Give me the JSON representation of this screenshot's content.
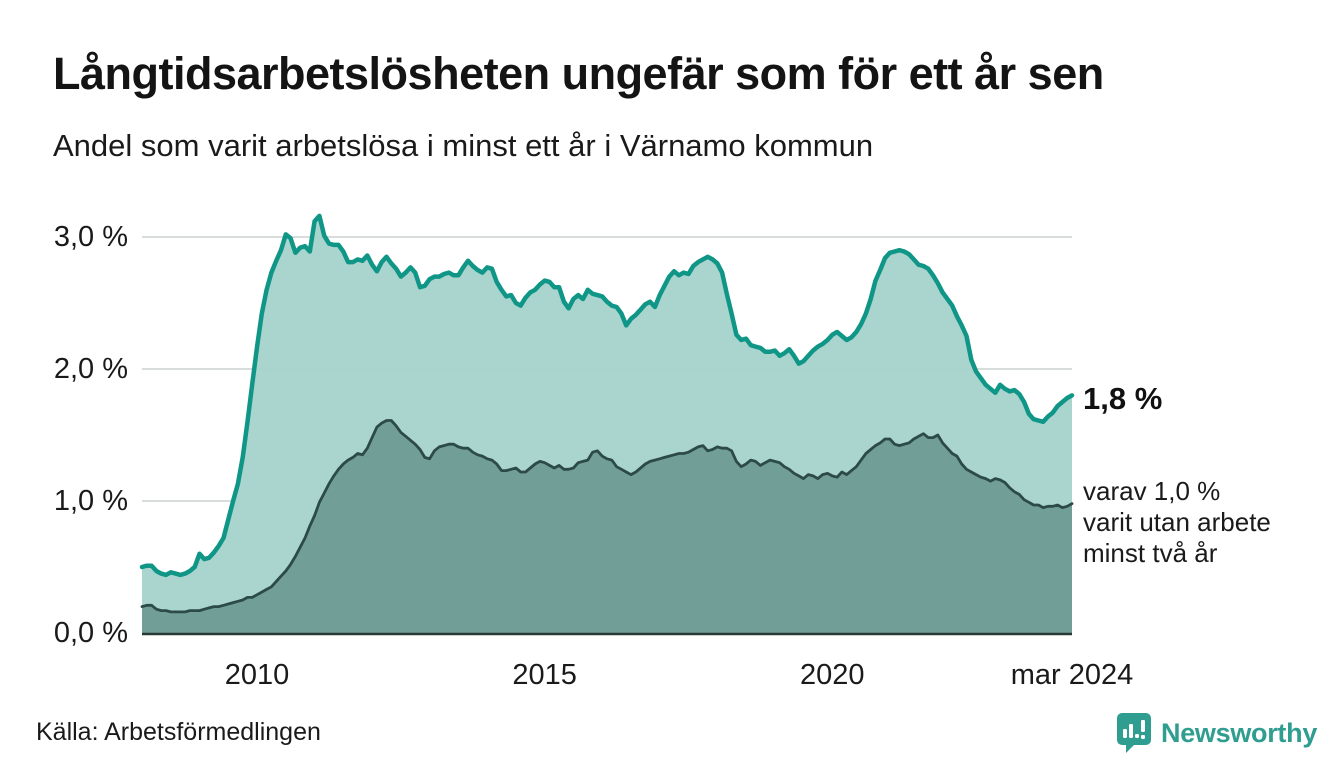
{
  "header": {
    "title": "Långtidsarbetslösheten ungefär som för ett år sen",
    "subtitle": "Andel som varit arbetslösa i minst ett år i Värnamo kommun"
  },
  "annotations": {
    "latest": "1,8 %",
    "secondary": "varav 1,0 %\nvarit utan arbete\nminst två år"
  },
  "footer": {
    "source": "Källa: Arbetsförmedlingen",
    "brand": "Newsworthy"
  },
  "colors": {
    "accent_teal": "#109687",
    "light_fill": "#a5d3cb",
    "dark_line": "#2d4b46",
    "dark_fill": "#6f9b95",
    "gridline": "#d8dcda",
    "axis_line": "#2a3835",
    "brand_teal": "#2f9d90"
  },
  "chart_data": {
    "type": "area",
    "title": "Andel som varit arbetslösa i minst ett år i Värnamo kommun",
    "frequency": "monthly",
    "x_start": "2008-01",
    "x_end": "2024-03",
    "unit": "%",
    "legend_position": "none",
    "grid": true,
    "x_axis": {
      "range_years": [
        2008.0,
        2024.1667
      ],
      "ticks": [
        {
          "label": "2010",
          "t": 2010.0
        },
        {
          "label": "2015",
          "t": 2015.0
        },
        {
          "label": "2020",
          "t": 2020.0
        },
        {
          "label": "mar 2024",
          "t": 2024.1667
        }
      ]
    },
    "y_axis": {
      "range": [
        0,
        3.35
      ],
      "gridlines": [
        1,
        2,
        3
      ],
      "ticks": [
        {
          "label": "0,0 %",
          "value": 0
        },
        {
          "label": "1,0 %",
          "value": 1
        },
        {
          "label": "2,0 %",
          "value": 2
        },
        {
          "label": "3,0 %",
          "value": 3
        }
      ]
    },
    "series": [
      {
        "name": "Andel arbetslösa minst ett år",
        "latest_value": 1.8,
        "line_color": "#109687",
        "fill_color": "#a5d3cb",
        "values": [
          0.5,
          0.51,
          0.51,
          0.47,
          0.45,
          0.44,
          0.46,
          0.45,
          0.44,
          0.45,
          0.47,
          0.5,
          0.6,
          0.56,
          0.57,
          0.61,
          0.66,
          0.72,
          0.86,
          1.0,
          1.13,
          1.33,
          1.6,
          1.89,
          2.17,
          2.42,
          2.6,
          2.73,
          2.82,
          2.9,
          3.02,
          2.99,
          2.88,
          2.92,
          2.93,
          2.89,
          3.12,
          3.16,
          3.01,
          2.95,
          2.94,
          2.94,
          2.89,
          2.81,
          2.81,
          2.83,
          2.82,
          2.86,
          2.79,
          2.74,
          2.81,
          2.85,
          2.8,
          2.76,
          2.7,
          2.73,
          2.77,
          2.73,
          2.62,
          2.63,
          2.68,
          2.7,
          2.7,
          2.72,
          2.73,
          2.71,
          2.71,
          2.77,
          2.82,
          2.78,
          2.75,
          2.73,
          2.77,
          2.76,
          2.66,
          2.6,
          2.55,
          2.56,
          2.5,
          2.48,
          2.54,
          2.58,
          2.6,
          2.64,
          2.67,
          2.66,
          2.62,
          2.62,
          2.51,
          2.46,
          2.53,
          2.56,
          2.53,
          2.6,
          2.57,
          2.56,
          2.55,
          2.51,
          2.48,
          2.47,
          2.42,
          2.33,
          2.38,
          2.41,
          2.45,
          2.49,
          2.51,
          2.47,
          2.56,
          2.63,
          2.7,
          2.74,
          2.71,
          2.73,
          2.72,
          2.78,
          2.81,
          2.83,
          2.85,
          2.83,
          2.8,
          2.73,
          2.57,
          2.42,
          2.26,
          2.22,
          2.23,
          2.18,
          2.17,
          2.16,
          2.13,
          2.13,
          2.14,
          2.1,
          2.12,
          2.15,
          2.1,
          2.04,
          2.06,
          2.1,
          2.14,
          2.17,
          2.19,
          2.22,
          2.26,
          2.28,
          2.25,
          2.22,
          2.24,
          2.28,
          2.34,
          2.42,
          2.53,
          2.67,
          2.75,
          2.84,
          2.88,
          2.89,
          2.9,
          2.89,
          2.87,
          2.83,
          2.79,
          2.78,
          2.76,
          2.71,
          2.65,
          2.58,
          2.53,
          2.48,
          2.4,
          2.33,
          2.25,
          2.07,
          1.98,
          1.93,
          1.88,
          1.85,
          1.82,
          1.88,
          1.85,
          1.83,
          1.84,
          1.81,
          1.75,
          1.66,
          1.62,
          1.61,
          1.6,
          1.64,
          1.67,
          1.72,
          1.75,
          1.78,
          1.8
        ]
      },
      {
        "name": "varav utan arbete minst två år",
        "latest_value": 1.0,
        "line_color": "#2d4b46",
        "fill_color": "#6f9b95",
        "values": [
          0.2,
          0.21,
          0.21,
          0.18,
          0.17,
          0.17,
          0.16,
          0.16,
          0.16,
          0.16,
          0.17,
          0.17,
          0.17,
          0.18,
          0.19,
          0.2,
          0.2,
          0.21,
          0.22,
          0.23,
          0.24,
          0.25,
          0.27,
          0.27,
          0.29,
          0.31,
          0.33,
          0.35,
          0.39,
          0.43,
          0.47,
          0.52,
          0.58,
          0.65,
          0.72,
          0.81,
          0.89,
          0.99,
          1.06,
          1.13,
          1.19,
          1.24,
          1.28,
          1.31,
          1.33,
          1.36,
          1.35,
          1.4,
          1.48,
          1.56,
          1.59,
          1.61,
          1.61,
          1.57,
          1.52,
          1.49,
          1.46,
          1.43,
          1.39,
          1.33,
          1.32,
          1.38,
          1.41,
          1.42,
          1.43,
          1.43,
          1.41,
          1.4,
          1.4,
          1.37,
          1.35,
          1.34,
          1.32,
          1.31,
          1.28,
          1.23,
          1.23,
          1.24,
          1.25,
          1.22,
          1.22,
          1.25,
          1.28,
          1.3,
          1.29,
          1.27,
          1.25,
          1.27,
          1.24,
          1.24,
          1.25,
          1.29,
          1.3,
          1.31,
          1.37,
          1.38,
          1.34,
          1.32,
          1.31,
          1.26,
          1.24,
          1.22,
          1.2,
          1.22,
          1.25,
          1.28,
          1.3,
          1.31,
          1.32,
          1.33,
          1.34,
          1.35,
          1.36,
          1.36,
          1.37,
          1.39,
          1.41,
          1.42,
          1.38,
          1.39,
          1.41,
          1.4,
          1.4,
          1.38,
          1.3,
          1.26,
          1.28,
          1.31,
          1.3,
          1.27,
          1.29,
          1.31,
          1.3,
          1.29,
          1.26,
          1.24,
          1.21,
          1.19,
          1.17,
          1.2,
          1.19,
          1.17,
          1.2,
          1.21,
          1.19,
          1.18,
          1.22,
          1.2,
          1.23,
          1.26,
          1.31,
          1.36,
          1.39,
          1.42,
          1.44,
          1.47,
          1.47,
          1.43,
          1.42,
          1.43,
          1.44,
          1.47,
          1.49,
          1.51,
          1.48,
          1.48,
          1.5,
          1.44,
          1.4,
          1.36,
          1.34,
          1.28,
          1.24,
          1.22,
          1.2,
          1.18,
          1.17,
          1.15,
          1.17,
          1.16,
          1.14,
          1.1,
          1.07,
          1.05,
          1.01,
          0.99,
          0.97,
          0.97,
          0.95,
          0.96,
          0.96,
          0.97,
          0.95,
          0.96,
          0.98
        ]
      }
    ]
  }
}
